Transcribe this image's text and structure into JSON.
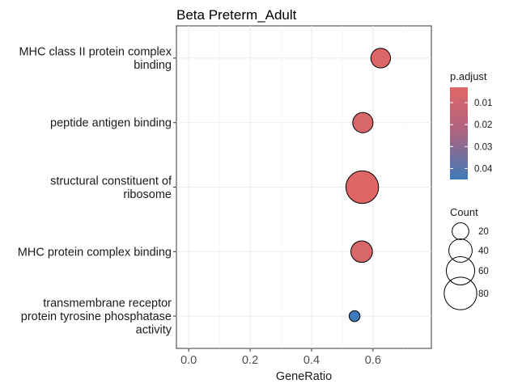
{
  "chart_data": {
    "type": "scatter",
    "title": "Beta Preterm_Adult",
    "xlabel": "GeneRatio",
    "ylabel": "",
    "xlim": [
      -0.04,
      0.79
    ],
    "xticks": [
      "0.0",
      "0.2",
      "0.4",
      "0.6"
    ],
    "xtick_values": [
      0.0,
      0.2,
      0.4,
      0.6
    ],
    "grid": true,
    "legend_position": "right",
    "categories": [
      [
        "MHC class II protein complex",
        "binding"
      ],
      [
        "peptide antigen binding"
      ],
      [
        "structural constituent of",
        "ribosome"
      ],
      [
        "MHC protein complex binding"
      ],
      [
        "transmembrane receptor",
        "protein tyrosine phosphatase",
        "activity"
      ]
    ],
    "points": [
      {
        "x": 0.625,
        "count": 28,
        "p_adjust": 0.004
      },
      {
        "x": 0.567,
        "count": 30,
        "p_adjust": 0.005
      },
      {
        "x": 0.565,
        "count": 80,
        "p_adjust": 0.003
      },
      {
        "x": 0.563,
        "count": 34,
        "p_adjust": 0.005
      },
      {
        "x": 0.54,
        "count": 8,
        "p_adjust": 0.045
      }
    ],
    "color_legend": {
      "title": "p.adjust",
      "ticks": [
        "0.01",
        "0.02",
        "0.03",
        "0.04"
      ],
      "tick_values": [
        0.01,
        0.02,
        0.03,
        0.04
      ],
      "low_color": "#e06666",
      "high_color": "#3d7ab8",
      "range": [
        0.003,
        0.045
      ]
    },
    "size_legend": {
      "title": "Count",
      "labels": [
        "20",
        "40",
        "60",
        "80"
      ],
      "values": [
        20,
        40,
        60,
        80
      ]
    }
  }
}
